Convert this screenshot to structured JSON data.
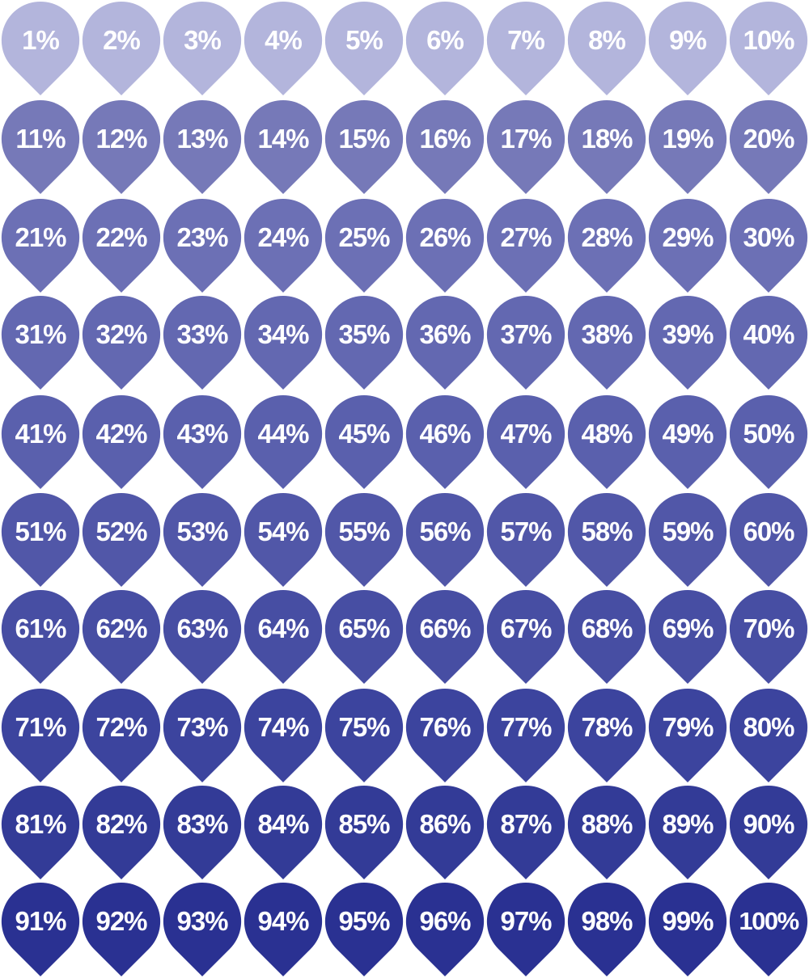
{
  "pins": {
    "icon": "map-pin-icon",
    "label_color": "#ffffff",
    "row_colors": [
      "#b3b5dc",
      "#7679b8",
      "#6c70b5",
      "#6368b1",
      "#5a60ad",
      "#5157a8",
      "#474ea3",
      "#3c449e",
      "#333b97",
      "#2a3192"
    ],
    "labels": [
      "1%",
      "2%",
      "3%",
      "4%",
      "5%",
      "6%",
      "7%",
      "8%",
      "9%",
      "10%",
      "11%",
      "12%",
      "13%",
      "14%",
      "15%",
      "16%",
      "17%",
      "18%",
      "19%",
      "20%",
      "21%",
      "22%",
      "23%",
      "24%",
      "25%",
      "26%",
      "27%",
      "28%",
      "29%",
      "30%",
      "31%",
      "32%",
      "33%",
      "34%",
      "35%",
      "36%",
      "37%",
      "38%",
      "39%",
      "40%",
      "41%",
      "42%",
      "43%",
      "44%",
      "45%",
      "46%",
      "47%",
      "48%",
      "49%",
      "50%",
      "51%",
      "52%",
      "53%",
      "54%",
      "55%",
      "56%",
      "57%",
      "58%",
      "59%",
      "60%",
      "61%",
      "62%",
      "63%",
      "64%",
      "65%",
      "66%",
      "67%",
      "68%",
      "69%",
      "70%",
      "71%",
      "72%",
      "73%",
      "74%",
      "75%",
      "76%",
      "77%",
      "78%",
      "79%",
      "80%",
      "81%",
      "82%",
      "83%",
      "84%",
      "85%",
      "86%",
      "87%",
      "88%",
      "89%",
      "90%",
      "91%",
      "92%",
      "93%",
      "94%",
      "95%",
      "96%",
      "97%",
      "98%",
      "99%",
      "100%"
    ]
  }
}
